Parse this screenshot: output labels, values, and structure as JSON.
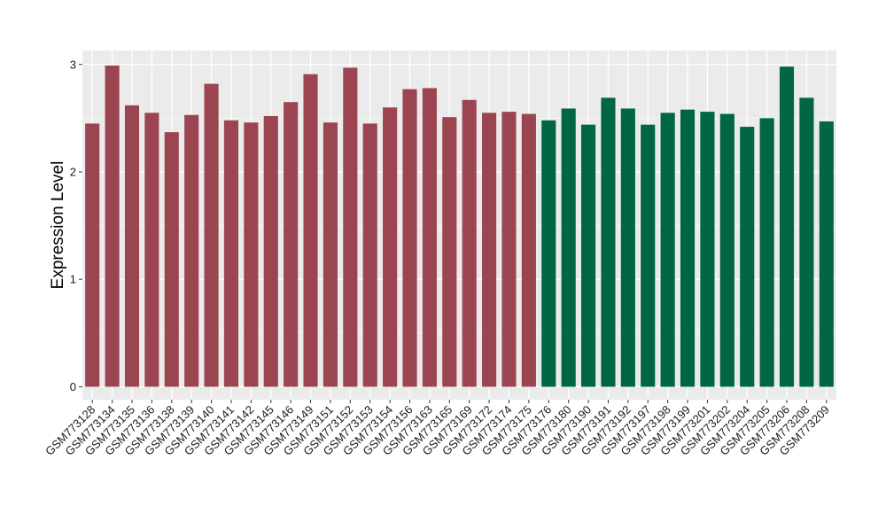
{
  "chart_data": {
    "type": "bar",
    "title": "",
    "xlabel": "",
    "ylabel": "Expression Level",
    "ylim": [
      -0.12,
      3.13
    ],
    "yticks": [
      0,
      1,
      2,
      3
    ],
    "ytick_labels": [
      "0",
      "1",
      "2",
      "3"
    ],
    "grid": true,
    "legend": "none",
    "categories": [
      "GSM773128",
      "GSM773134",
      "GSM773135",
      "GSM773136",
      "GSM773138",
      "GSM773139",
      "GSM773140",
      "GSM773141",
      "GSM773142",
      "GSM773145",
      "GSM773146",
      "GSM773149",
      "GSM773151",
      "GSM773152",
      "GSM773153",
      "GSM773154",
      "GSM773156",
      "GSM773163",
      "GSM773165",
      "GSM773169",
      "GSM773172",
      "GSM773174",
      "GSM773175",
      "GSM773176",
      "GSM773180",
      "GSM773190",
      "GSM773191",
      "GSM773192",
      "GSM773197",
      "GSM773198",
      "GSM773199",
      "GSM773201",
      "GSM773202",
      "GSM773204",
      "GSM773205",
      "GSM773206",
      "GSM773208",
      "GSM773209"
    ],
    "values": [
      2.45,
      2.99,
      2.62,
      2.55,
      2.37,
      2.53,
      2.82,
      2.48,
      2.46,
      2.52,
      2.65,
      2.91,
      2.46,
      2.97,
      2.45,
      2.6,
      2.77,
      2.78,
      2.51,
      2.67,
      2.55,
      2.56,
      2.54,
      2.48,
      2.59,
      2.44,
      2.69,
      2.59,
      2.44,
      2.55,
      2.58,
      2.56,
      2.54,
      2.42,
      2.5,
      2.98,
      2.69,
      2.47
    ],
    "groups": [
      0,
      0,
      0,
      0,
      0,
      0,
      0,
      0,
      0,
      0,
      0,
      0,
      0,
      0,
      0,
      0,
      0,
      0,
      0,
      0,
      0,
      0,
      0,
      1,
      1,
      1,
      1,
      1,
      1,
      1,
      1,
      1,
      1,
      1,
      1,
      1,
      1,
      1
    ],
    "colors": [
      "#9b4550",
      "#006644"
    ],
    "panel_background": "#ebebeb",
    "grid_color": "#ffffff"
  }
}
